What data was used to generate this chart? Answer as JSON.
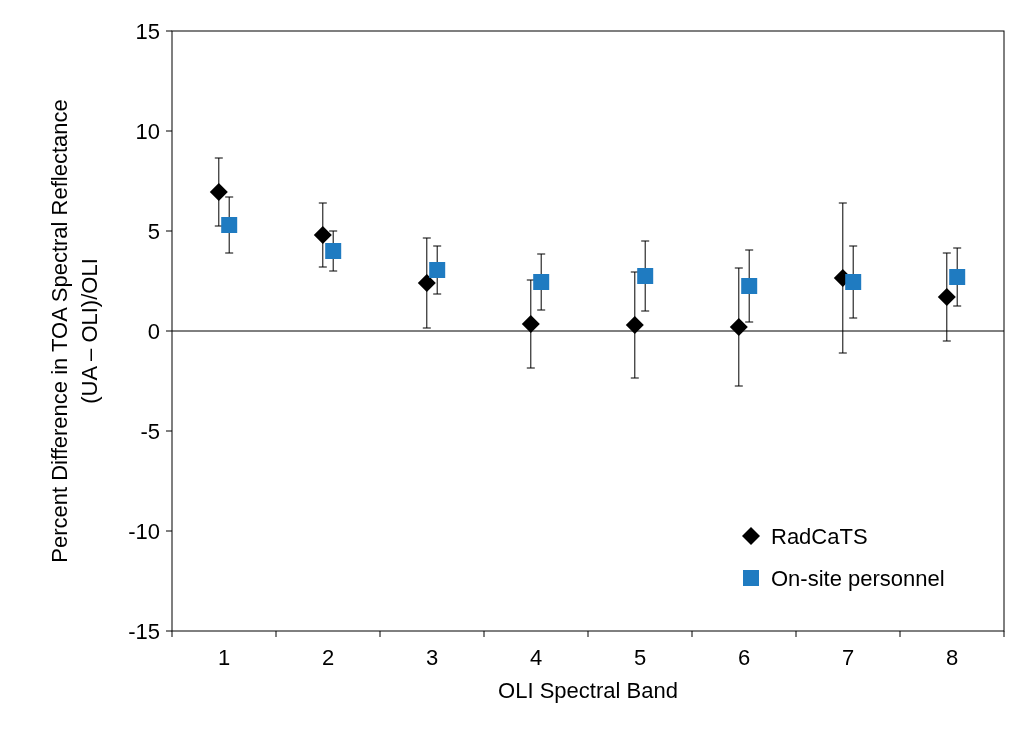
{
  "chart_data": {
    "type": "scatter",
    "xlabel": "OLI Spectral Band",
    "ylabel": "Percent Difference in TOA Spectral Reflectance\n(UA – OLI)/OLI",
    "categories": [
      "1",
      "2",
      "3",
      "4",
      "5",
      "6",
      "7",
      "8"
    ],
    "ylim": [
      -15,
      15
    ],
    "yticks": [
      -15,
      -10,
      -5,
      0,
      5,
      10,
      15
    ],
    "legend": "bottom right",
    "grid": false,
    "ref_lines": [
      {
        "axis": "y",
        "value": 0,
        "color": "#000000"
      }
    ],
    "series": [
      {
        "name": "RadCaTS",
        "color": "#000000",
        "marker": "diamond",
        "x": [
          "1",
          "2",
          "3",
          "4",
          "5",
          "6",
          "7",
          "8"
        ],
        "values": [
          6.95,
          4.8,
          2.4,
          0.35,
          0.3,
          0.2,
          2.65,
          1.7
        ],
        "errors": [
          1.7,
          1.6,
          2.25,
          2.2,
          2.65,
          2.95,
          3.75,
          2.2
        ]
      },
      {
        "name": "On-site personnel",
        "color": "#1f7bc1",
        "marker": "square",
        "x": [
          "1",
          "2",
          "3",
          "4",
          "5",
          "6",
          "7",
          "8"
        ],
        "values": [
          5.3,
          4.0,
          3.05,
          2.45,
          2.75,
          2.25,
          2.45,
          2.7
        ],
        "errors": [
          1.4,
          1.0,
          1.2,
          1.4,
          1.75,
          1.8,
          1.8,
          1.45
        ]
      }
    ]
  }
}
